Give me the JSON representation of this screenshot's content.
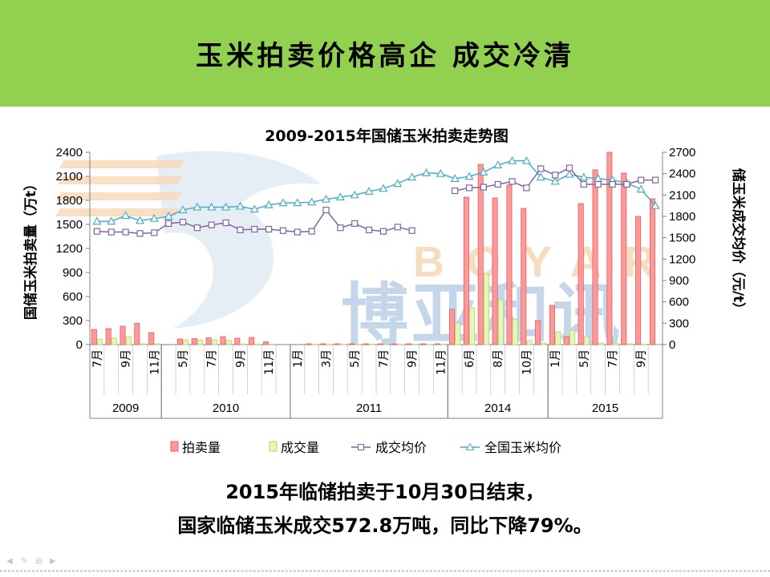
{
  "slide": {
    "title": "玉米拍卖价格高企 成交冷清",
    "summary_line1": "2015年临储拍卖于10月30日结束，",
    "summary_line2": "国家临储玉米成交572.8万吨，同比下降79%。"
  },
  "watermark": {
    "latin": "BOYAR",
    "chinese": "博亚和讯"
  },
  "colors": {
    "banner": "#92d050",
    "auction": "#ff9999",
    "deal": "#e6f5b8",
    "avg_price": "#8064a2",
    "national_price": "#4bacc6"
  },
  "chart_data": {
    "type": "bar",
    "title": "2009-2015年国储玉米拍卖走势图",
    "ylabel": "国储玉米拍卖量（万t）",
    "y2label": "储玉米成交均价（元/t）",
    "ylim": [
      0,
      2400
    ],
    "y2lim": [
      0,
      2700
    ],
    "yticks": [
      "0",
      "300",
      "600",
      "900",
      "1200",
      "1500",
      "1800",
      "2100",
      "2400"
    ],
    "y2ticks": [
      "0",
      "300",
      "600",
      "900",
      "1200",
      "1500",
      "1800",
      "2100",
      "2400",
      "2700"
    ],
    "grid": false,
    "legend_position": "bottom",
    "categories": [
      "7月",
      "",
      "9月",
      "",
      "11月",
      "",
      "5月",
      "",
      "7月",
      "",
      "9月",
      "",
      "11月",
      "",
      "1月",
      "",
      "3月",
      "",
      "5月",
      "",
      "7月",
      "",
      "9月",
      "",
      "11月",
      "",
      "6月",
      "",
      "8月",
      "",
      "10月",
      "",
      "1月",
      "",
      "5月",
      "",
      "7月",
      "",
      "9月",
      ""
    ],
    "year_groups": [
      {
        "label": "2009",
        "start": 0,
        "end": 5
      },
      {
        "label": "2010",
        "start": 5,
        "end": 14
      },
      {
        "label": "2011",
        "start": 14,
        "end": 25
      },
      {
        "label": "2014",
        "start": 25,
        "end": 32
      },
      {
        "label": "2015",
        "start": 32,
        "end": 40
      }
    ],
    "series": [
      {
        "name": "拍卖量",
        "type": "bar",
        "axis": "left",
        "values": [
          190,
          200,
          230,
          265,
          150,
          null,
          70,
          75,
          85,
          100,
          80,
          90,
          35,
          null,
          null,
          10,
          10,
          10,
          10,
          10,
          10,
          10,
          10,
          10,
          10,
          440,
          1840,
          2250,
          1830,
          1990,
          1700,
          300,
          490,
          100,
          1760,
          2180,
          2400,
          2140,
          1600,
          1820
        ]
      },
      {
        "name": "成交量",
        "type": "bar",
        "axis": "left",
        "values": [
          70,
          80,
          100,
          10,
          10,
          null,
          60,
          60,
          60,
          55,
          5,
          5,
          5,
          null,
          null,
          3,
          3,
          3,
          3,
          3,
          3,
          3,
          3,
          3,
          3,
          270,
          460,
          880,
          560,
          320,
          50,
          20,
          160,
          180,
          100,
          20,
          20,
          10,
          5,
          5
        ]
      },
      {
        "name": "成交均价",
        "type": "line",
        "axis": "right",
        "values": [
          1590,
          1580,
          1580,
          1560,
          1570,
          1700,
          1720,
          1640,
          1680,
          1710,
          1610,
          1620,
          1620,
          1600,
          1580,
          1590,
          1890,
          1640,
          1700,
          1610,
          1590,
          1650,
          1600,
          null,
          null,
          2160,
          2200,
          2210,
          2250,
          2290,
          2200,
          2470,
          2380,
          2480,
          2250,
          2250,
          2250,
          2250,
          2310,
          2310
        ]
      },
      {
        "name": "全国玉米均价",
        "type": "line",
        "axis": "right",
        "values": [
          1730,
          1730,
          1810,
          1740,
          1770,
          1800,
          1890,
          1930,
          1930,
          1930,
          1940,
          1900,
          1960,
          1990,
          1990,
          2000,
          2040,
          2070,
          2100,
          2150,
          2190,
          2260,
          2350,
          2410,
          2400,
          2330,
          2360,
          2420,
          2520,
          2580,
          2580,
          2350,
          2290,
          2390,
          2350,
          2330,
          2310,
          2270,
          2180,
          1950
        ]
      }
    ]
  }
}
